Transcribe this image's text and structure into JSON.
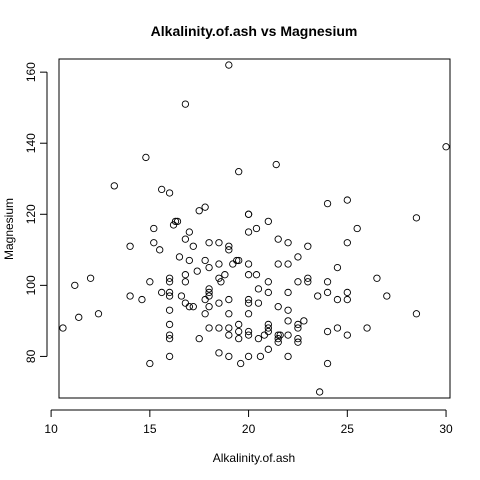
{
  "chart_data": {
    "type": "scatter",
    "title": "Alkalinity.of.ash vs Magnesium",
    "xlabel": "Alkalinity.of.ash",
    "ylabel": "Magnesium",
    "xlim": [
      10.4,
      30.2
    ],
    "ylim": [
      68.3,
      163.7
    ],
    "x_ticks": [
      10,
      15,
      20,
      25,
      30
    ],
    "y_ticks": [
      80,
      100,
      120,
      140,
      160
    ],
    "grid": false,
    "legend": "none",
    "marker": "open-circle",
    "points": [
      {
        "x": 10.6,
        "y": 88
      },
      {
        "x": 11.2,
        "y": 100
      },
      {
        "x": 11.4,
        "y": 91
      },
      {
        "x": 12.0,
        "y": 102
      },
      {
        "x": 12.4,
        "y": 92
      },
      {
        "x": 13.2,
        "y": 128
      },
      {
        "x": 14.0,
        "y": 111
      },
      {
        "x": 14.0,
        "y": 97
      },
      {
        "x": 14.6,
        "y": 96
      },
      {
        "x": 14.8,
        "y": 136
      },
      {
        "x": 15.0,
        "y": 101
      },
      {
        "x": 15.0,
        "y": 78
      },
      {
        "x": 15.2,
        "y": 112
      },
      {
        "x": 15.2,
        "y": 116
      },
      {
        "x": 15.5,
        "y": 110
      },
      {
        "x": 15.6,
        "y": 98
      },
      {
        "x": 15.6,
        "y": 127
      },
      {
        "x": 16.0,
        "y": 126
      },
      {
        "x": 16.0,
        "y": 102
      },
      {
        "x": 16.0,
        "y": 101
      },
      {
        "x": 16.0,
        "y": 98
      },
      {
        "x": 16.0,
        "y": 97
      },
      {
        "x": 16.0,
        "y": 93
      },
      {
        "x": 16.0,
        "y": 89
      },
      {
        "x": 16.0,
        "y": 86
      },
      {
        "x": 16.0,
        "y": 85
      },
      {
        "x": 16.0,
        "y": 80
      },
      {
        "x": 16.2,
        "y": 117
      },
      {
        "x": 16.3,
        "y": 118
      },
      {
        "x": 16.4,
        "y": 118
      },
      {
        "x": 16.5,
        "y": 108
      },
      {
        "x": 16.6,
        "y": 97
      },
      {
        "x": 16.8,
        "y": 151
      },
      {
        "x": 16.8,
        "y": 113
      },
      {
        "x": 16.8,
        "y": 103
      },
      {
        "x": 16.8,
        "y": 101
      },
      {
        "x": 16.8,
        "y": 95
      },
      {
        "x": 17.0,
        "y": 115
      },
      {
        "x": 17.0,
        "y": 107
      },
      {
        "x": 17.0,
        "y": 94
      },
      {
        "x": 17.2,
        "y": 111
      },
      {
        "x": 17.2,
        "y": 94
      },
      {
        "x": 17.4,
        "y": 104
      },
      {
        "x": 17.5,
        "y": 85
      },
      {
        "x": 17.5,
        "y": 121
      },
      {
        "x": 17.8,
        "y": 122
      },
      {
        "x": 17.8,
        "y": 107
      },
      {
        "x": 17.8,
        "y": 96
      },
      {
        "x": 17.8,
        "y": 92
      },
      {
        "x": 18.0,
        "y": 112
      },
      {
        "x": 18.0,
        "y": 105
      },
      {
        "x": 18.0,
        "y": 99
      },
      {
        "x": 18.0,
        "y": 98
      },
      {
        "x": 18.0,
        "y": 97
      },
      {
        "x": 18.0,
        "y": 94
      },
      {
        "x": 18.0,
        "y": 88
      },
      {
        "x": 18.5,
        "y": 112
      },
      {
        "x": 18.5,
        "y": 106
      },
      {
        "x": 18.5,
        "y": 102
      },
      {
        "x": 18.5,
        "y": 95
      },
      {
        "x": 18.5,
        "y": 88
      },
      {
        "x": 18.5,
        "y": 81
      },
      {
        "x": 18.6,
        "y": 101
      },
      {
        "x": 18.8,
        "y": 103
      },
      {
        "x": 19.0,
        "y": 162
      },
      {
        "x": 19.0,
        "y": 111
      },
      {
        "x": 19.0,
        "y": 110
      },
      {
        "x": 19.0,
        "y": 96
      },
      {
        "x": 19.0,
        "y": 88
      },
      {
        "x": 19.0,
        "y": 86
      },
      {
        "x": 19.0,
        "y": 80
      },
      {
        "x": 19.0,
        "y": 92
      },
      {
        "x": 19.2,
        "y": 106
      },
      {
        "x": 19.4,
        "y": 107
      },
      {
        "x": 19.5,
        "y": 132
      },
      {
        "x": 19.5,
        "y": 107
      },
      {
        "x": 19.5,
        "y": 89
      },
      {
        "x": 19.5,
        "y": 87
      },
      {
        "x": 19.5,
        "y": 85
      },
      {
        "x": 19.6,
        "y": 78
      },
      {
        "x": 20.0,
        "y": 120
      },
      {
        "x": 20.0,
        "y": 120
      },
      {
        "x": 20.0,
        "y": 115
      },
      {
        "x": 20.0,
        "y": 106
      },
      {
        "x": 20.0,
        "y": 103
      },
      {
        "x": 20.0,
        "y": 96
      },
      {
        "x": 20.0,
        "y": 95
      },
      {
        "x": 20.0,
        "y": 92
      },
      {
        "x": 20.0,
        "y": 87
      },
      {
        "x": 20.0,
        "y": 86
      },
      {
        "x": 20.0,
        "y": 80
      },
      {
        "x": 20.4,
        "y": 116
      },
      {
        "x": 20.4,
        "y": 103
      },
      {
        "x": 20.5,
        "y": 99
      },
      {
        "x": 20.5,
        "y": 95
      },
      {
        "x": 20.5,
        "y": 85
      },
      {
        "x": 20.6,
        "y": 80
      },
      {
        "x": 20.8,
        "y": 86
      },
      {
        "x": 21.0,
        "y": 118
      },
      {
        "x": 21.0,
        "y": 101
      },
      {
        "x": 21.0,
        "y": 98
      },
      {
        "x": 21.0,
        "y": 89
      },
      {
        "x": 21.0,
        "y": 88
      },
      {
        "x": 21.0,
        "y": 87
      },
      {
        "x": 21.0,
        "y": 82
      },
      {
        "x": 21.4,
        "y": 134
      },
      {
        "x": 21.5,
        "y": 113
      },
      {
        "x": 21.5,
        "y": 106
      },
      {
        "x": 21.5,
        "y": 94
      },
      {
        "x": 21.5,
        "y": 86
      },
      {
        "x": 21.5,
        "y": 85
      },
      {
        "x": 21.5,
        "y": 84
      },
      {
        "x": 21.6,
        "y": 86
      },
      {
        "x": 22.0,
        "y": 112
      },
      {
        "x": 22.0,
        "y": 106
      },
      {
        "x": 22.0,
        "y": 98
      },
      {
        "x": 22.0,
        "y": 93
      },
      {
        "x": 22.0,
        "y": 90
      },
      {
        "x": 22.0,
        "y": 86
      },
      {
        "x": 22.0,
        "y": 80
      },
      {
        "x": 22.5,
        "y": 108
      },
      {
        "x": 22.5,
        "y": 101
      },
      {
        "x": 22.5,
        "y": 89
      },
      {
        "x": 22.5,
        "y": 88
      },
      {
        "x": 22.5,
        "y": 85
      },
      {
        "x": 22.5,
        "y": 84
      },
      {
        "x": 22.8,
        "y": 90
      },
      {
        "x": 23.0,
        "y": 111
      },
      {
        "x": 23.0,
        "y": 102
      },
      {
        "x": 23.0,
        "y": 101
      },
      {
        "x": 23.5,
        "y": 97
      },
      {
        "x": 23.6,
        "y": 70
      },
      {
        "x": 24.0,
        "y": 123
      },
      {
        "x": 24.0,
        "y": 101
      },
      {
        "x": 24.0,
        "y": 98
      },
      {
        "x": 24.0,
        "y": 87
      },
      {
        "x": 24.0,
        "y": 78
      },
      {
        "x": 24.5,
        "y": 105
      },
      {
        "x": 24.5,
        "y": 96
      },
      {
        "x": 24.5,
        "y": 88
      },
      {
        "x": 25.0,
        "y": 124
      },
      {
        "x": 25.0,
        "y": 112
      },
      {
        "x": 25.0,
        "y": 98
      },
      {
        "x": 25.0,
        "y": 96
      },
      {
        "x": 25.0,
        "y": 86
      },
      {
        "x": 25.5,
        "y": 116
      },
      {
        "x": 26.0,
        "y": 88
      },
      {
        "x": 26.5,
        "y": 102
      },
      {
        "x": 27.0,
        "y": 97
      },
      {
        "x": 28.5,
        "y": 119
      },
      {
        "x": 28.5,
        "y": 92
      },
      {
        "x": 30.0,
        "y": 139
      }
    ]
  }
}
